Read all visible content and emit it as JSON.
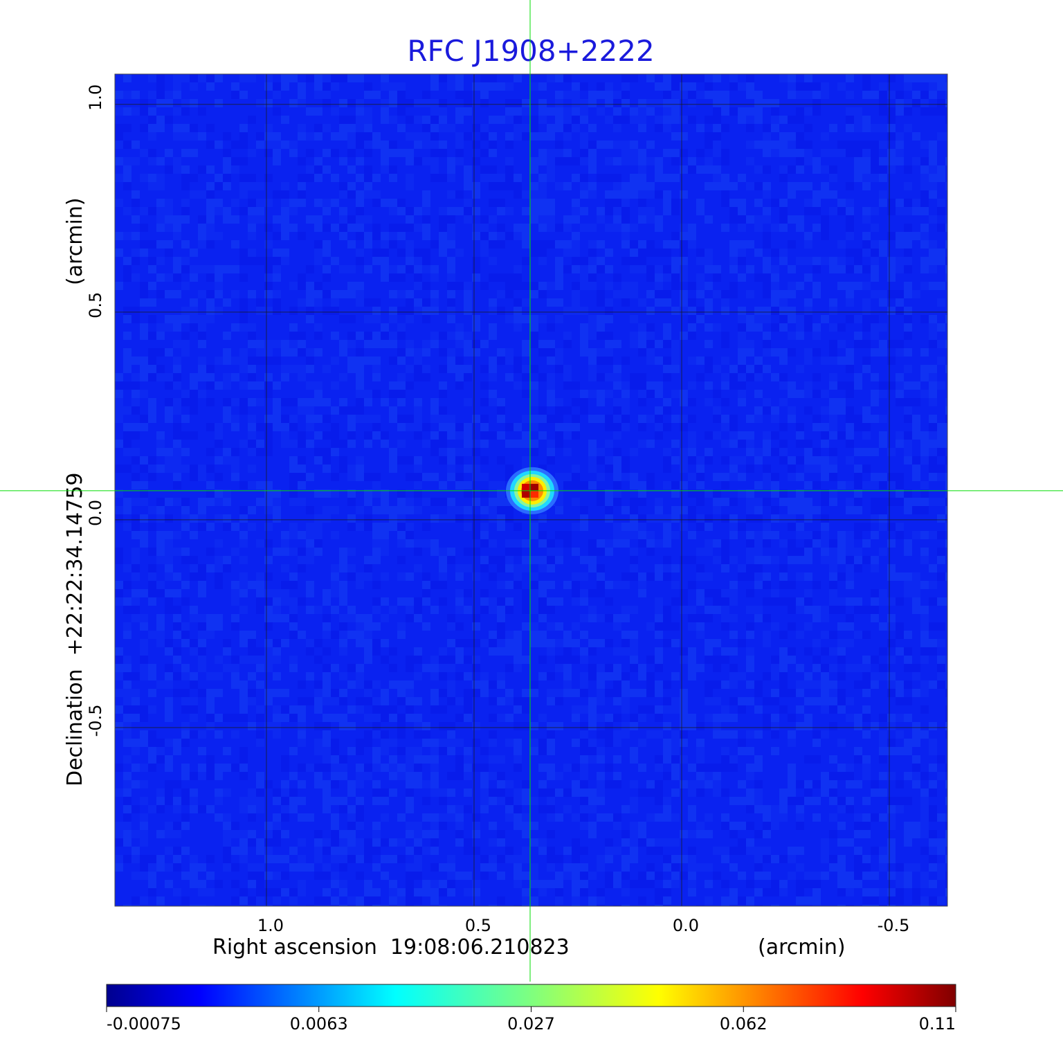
{
  "chart_data": {
    "type": "heatmap",
    "title": "RFC J1908+2222",
    "title_color": "#1a1adc",
    "xlabel": "Right ascension  19:08:06.210823",
    "xunit": "(arcmin)",
    "ylabel": "Declination  +22:22:34.14759",
    "yunit": "(arcmin)",
    "x_ticks": [
      {
        "value": 1.0,
        "label": "1.0"
      },
      {
        "value": 0.5,
        "label": "0.5"
      },
      {
        "value": 0.0,
        "label": "0.0"
      },
      {
        "value": -0.5,
        "label": "-0.5"
      }
    ],
    "y_ticks": [
      {
        "value": 1.0,
        "label": "1.0"
      },
      {
        "value": 0.5,
        "label": "0.5"
      },
      {
        "value": 0.0,
        "label": "0.0"
      },
      {
        "value": -0.5,
        "label": "-0.5"
      }
    ],
    "xlim": [
      1.365,
      -0.64
    ],
    "ylim": [
      -0.93,
      1.073
    ],
    "grid": true,
    "x_axis_reversed": true,
    "source_peak": {
      "x": 0.365,
      "y": 0.07,
      "value": 0.11
    },
    "crosshair": {
      "x": 0.365,
      "y": 0.07,
      "color": "#00dd00"
    },
    "background_level": 0.0,
    "colorbar": {
      "colormap": "jet",
      "position": "bottom",
      "ticks": [
        {
          "value": -0.00075,
          "label": "-0.00075"
        },
        {
          "value": 0.0063,
          "label": "0.0063"
        },
        {
          "value": 0.027,
          "label": "0.027"
        },
        {
          "value": 0.062,
          "label": "0.062"
        },
        {
          "value": 0.11,
          "label": "0.11"
        }
      ]
    }
  }
}
